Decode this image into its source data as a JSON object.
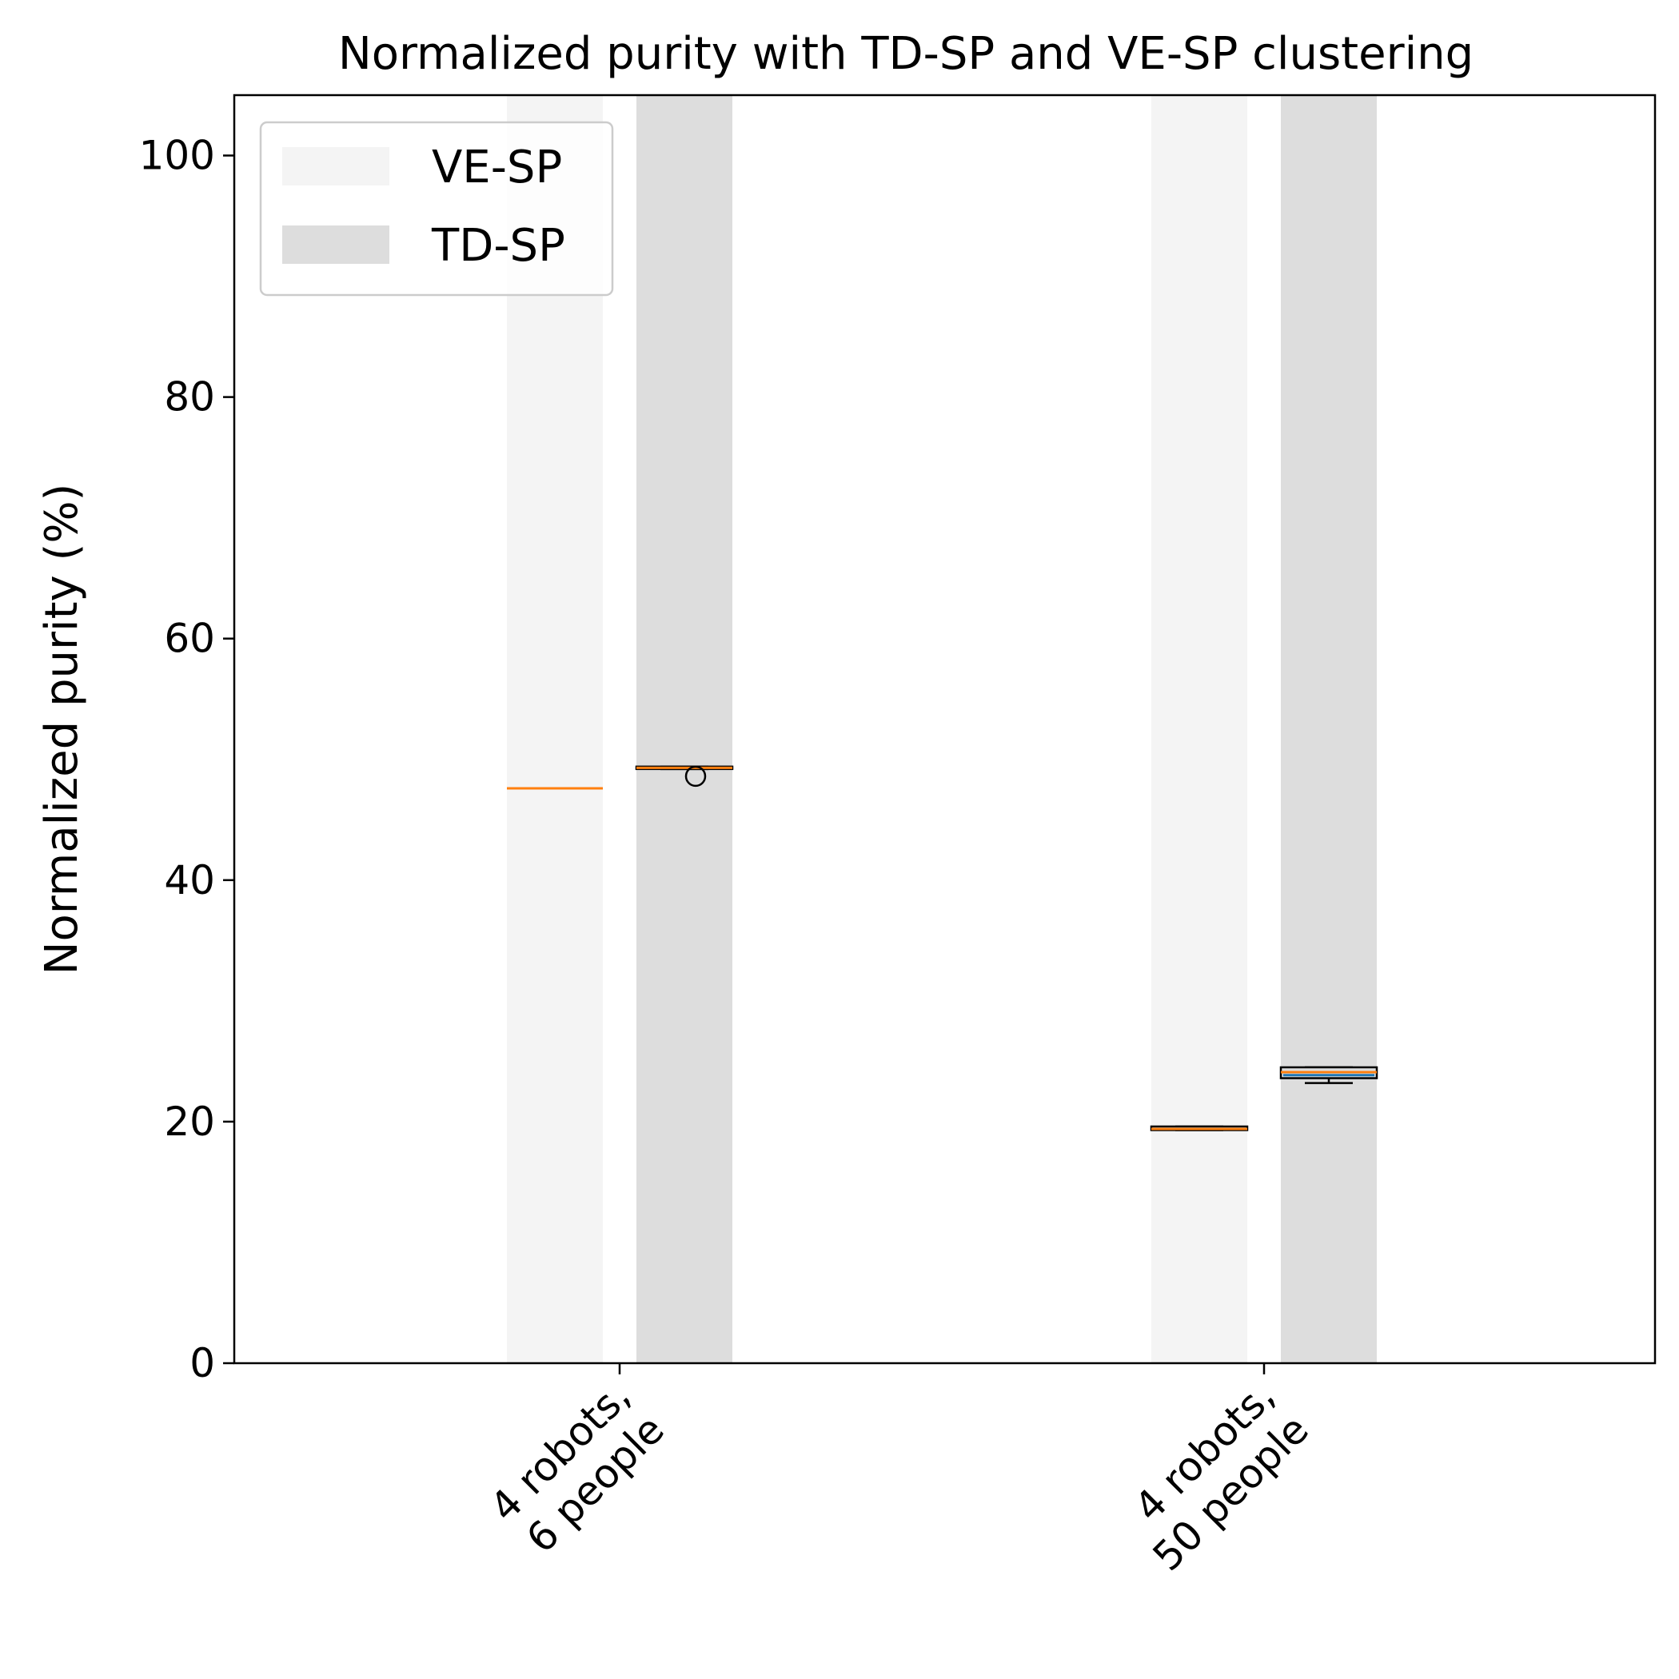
{
  "chart_data": {
    "type": "boxplot",
    "title": "Normalized purity with TD-SP and VE-SP clustering",
    "ylabel": "Normalized purity (%)",
    "xlabel": "",
    "ylim": [
      0,
      105
    ],
    "yticks": [
      0,
      20,
      40,
      60,
      80,
      100
    ],
    "categories": [
      [
        "4 robots,",
        "6 people"
      ],
      [
        "4 robots,",
        "50 people"
      ]
    ],
    "legend": {
      "placement": "top-left"
    },
    "grid": false,
    "series": [
      {
        "name": "VE-SP",
        "color": "#f4f4f4",
        "boxes": [
          {
            "whisker_low": 47.6,
            "q1": 47.6,
            "median": 47.6,
            "q3": 47.6,
            "whisker_high": 47.6,
            "outliers": []
          },
          {
            "whisker_low": 19.3,
            "q1": 19.3,
            "median": 19.4,
            "q3": 19.6,
            "whisker_high": 19.6,
            "outliers": []
          }
        ]
      },
      {
        "name": "TD-SP",
        "color": "#dddddd",
        "boxes": [
          {
            "whisker_low": 49.2,
            "q1": 49.2,
            "median": 49.3,
            "q3": 49.4,
            "whisker_high": 49.4,
            "outliers": [
              48.6
            ]
          },
          {
            "whisker_low": 23.2,
            "q1": 23.6,
            "median": 24.1,
            "q3": 24.5,
            "whisker_high": 24.5,
            "outliers": []
          }
        ]
      }
    ],
    "colors": {
      "median": "#ff7f0e",
      "mean_line": "#1f77b4",
      "box_edge": "#000000"
    }
  }
}
